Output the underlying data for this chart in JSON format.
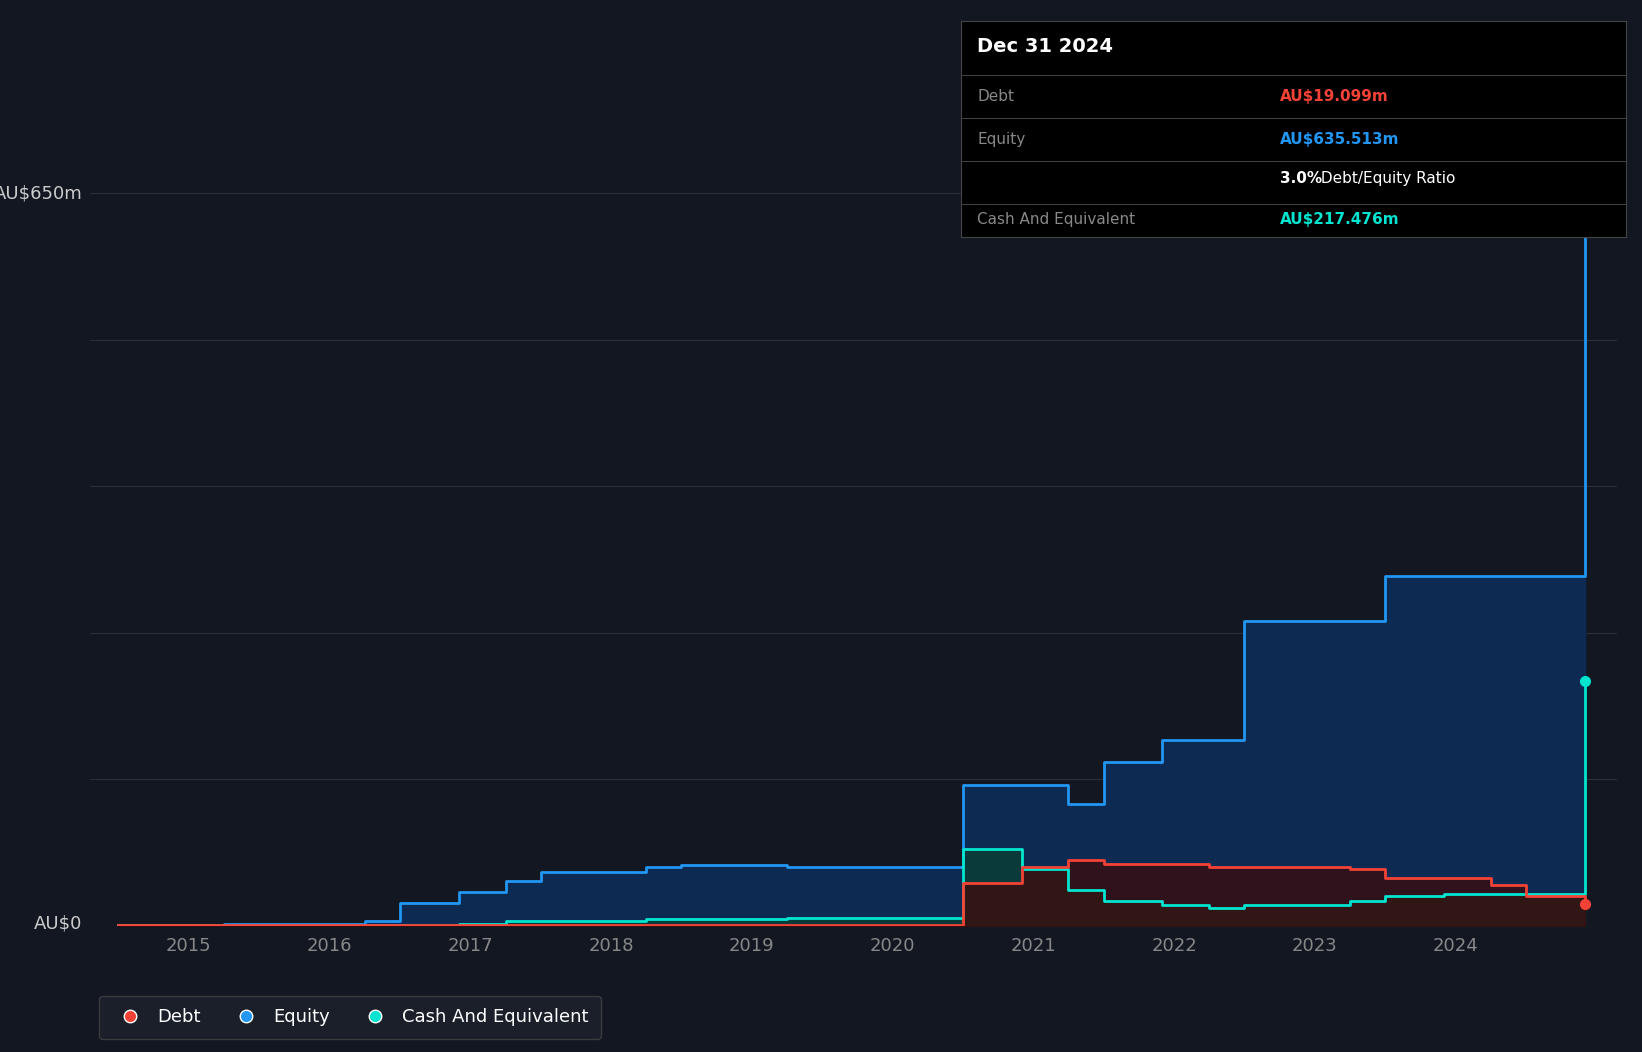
{
  "bg_color": "#131722",
  "plot_bg_color": "#131722",
  "grid_color": "#2a2e39",
  "equity_color": "#2196F3",
  "debt_color": "#f44336",
  "cash_color": "#00e5d0",
  "ylabel_top": "AU$650m",
  "ylabel_zero": "AU$0",
  "dates_x": [
    2014.5,
    2014.917,
    2015.25,
    2015.5,
    2015.917,
    2016.25,
    2016.5,
    2016.917,
    2017.25,
    2017.5,
    2017.917,
    2018.25,
    2018.5,
    2018.917,
    2019.25,
    2019.5,
    2019.917,
    2020.25,
    2020.5,
    2020.917,
    2021.25,
    2021.5,
    2021.917,
    2022.25,
    2022.5,
    2022.917,
    2023.25,
    2023.5,
    2023.917,
    2024.25,
    2024.5,
    2024.917
  ],
  "equity": [
    1,
    1,
    2,
    2,
    2,
    4,
    20,
    30,
    40,
    48,
    48,
    52,
    54,
    54,
    52,
    52,
    52,
    52,
    125,
    125,
    108,
    145,
    165,
    165,
    270,
    270,
    270,
    310,
    310,
    310,
    310,
    635
  ],
  "debt": [
    1,
    1,
    1,
    1,
    1,
    1,
    1,
    1,
    1,
    1,
    1,
    1,
    1,
    1,
    1,
    1,
    1,
    1,
    38,
    52,
    58,
    55,
    55,
    52,
    52,
    52,
    50,
    42,
    42,
    36,
    26,
    19
  ],
  "cash": [
    0.5,
    0.5,
    0.5,
    0.5,
    0.5,
    1,
    1,
    2,
    4,
    4,
    4,
    6,
    6,
    6,
    7,
    7,
    7,
    7,
    68,
    50,
    32,
    22,
    18,
    16,
    18,
    18,
    22,
    26,
    28,
    28,
    28,
    217
  ],
  "ylim": [
    0,
    700
  ],
  "xlim_start": 2014.3,
  "xlim_end": 2025.15,
  "xtick_years": [
    2015,
    2016,
    2017,
    2018,
    2019,
    2020,
    2021,
    2022,
    2023,
    2024
  ],
  "grid_yticks": [
    0,
    130,
    260,
    390,
    520,
    650
  ],
  "tooltip": {
    "date": "Dec 31 2024",
    "debt_label": "Debt",
    "debt_value": "AU$19.099m",
    "equity_label": "Equity",
    "equity_value": "AU$635.513m",
    "ratio_bold": "3.0%",
    "ratio_rest": " Debt/Equity Ratio",
    "cash_label": "Cash And Equivalent",
    "cash_value": "AU$217.476m"
  },
  "legend": [
    {
      "label": "Debt",
      "color": "#f44336"
    },
    {
      "label": "Equity",
      "color": "#2196F3"
    },
    {
      "label": "Cash And Equivalent",
      "color": "#00e5d0"
    }
  ]
}
